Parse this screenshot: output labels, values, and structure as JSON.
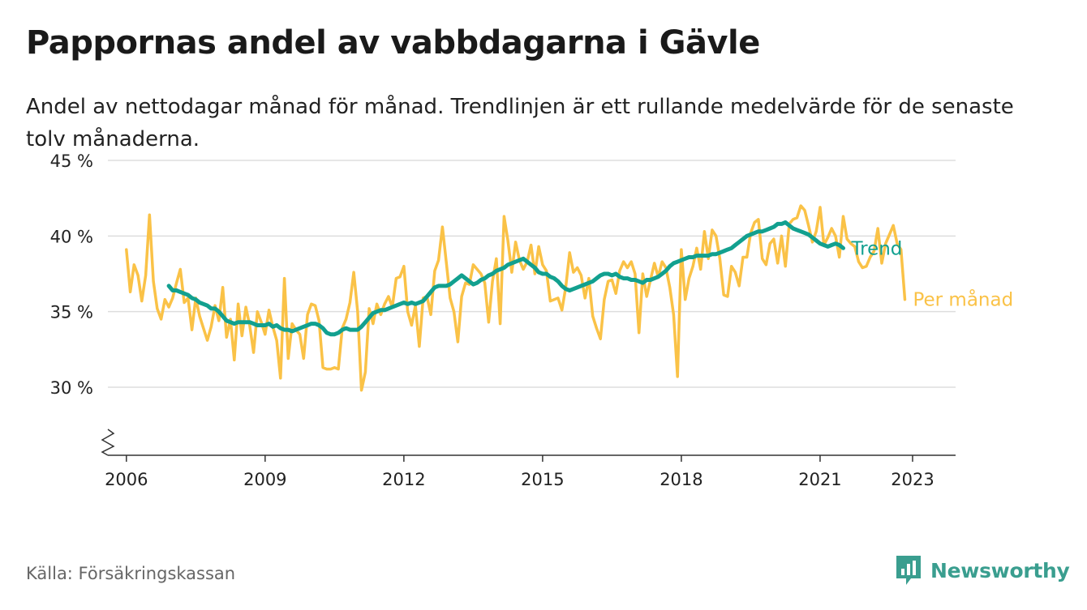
{
  "title": "Pappornas andel av vabbdagarna i Gävle",
  "subtitle": "Andel av nettodagar månad för månad. Trendlinjen är ett rullande medelvärde för de senaste tolv månaderna.",
  "source": "Källa: Försäkringskassan",
  "brand": "Newsworthy",
  "colors": {
    "monthly": "#fac247",
    "trend": "#12a08f",
    "grid": "#dddddd",
    "axis": "#333333",
    "brand": "#3a9e8f"
  },
  "chart_data": {
    "type": "line",
    "ylim": [
      25.5,
      45
    ],
    "xlim": [
      2005.6,
      2023.93
    ],
    "grid": true,
    "legend": "inline-right",
    "y_ticks": [
      30,
      35,
      40,
      45
    ],
    "y_tick_labels": [
      "30 %",
      "35 %",
      "40 %",
      "45 %"
    ],
    "x_ticks": [
      2006,
      2009,
      2012,
      2015,
      2018,
      2021,
      2023
    ],
    "x_tick_labels": [
      "2006",
      "2009",
      "2012",
      "2015",
      "2018",
      "2021",
      "2023"
    ],
    "series": [
      {
        "name": "Per månad",
        "color": "#fac247",
        "start": "2006-01",
        "values": [
          39.1,
          36.3,
          38.1,
          37.4,
          35.7,
          37.4,
          41.4,
          37.0,
          35.2,
          34.5,
          35.8,
          35.3,
          35.9,
          36.9,
          37.8,
          35.6,
          35.9,
          33.8,
          35.9,
          34.7,
          33.9,
          33.1,
          34.0,
          35.4,
          34.4,
          36.6,
          33.3,
          34.5,
          31.8,
          35.5,
          33.4,
          35.3,
          34.1,
          32.3,
          35.0,
          34.3,
          33.5,
          35.1,
          34.0,
          33.1,
          30.6,
          37.2,
          31.9,
          34.2,
          33.8,
          33.5,
          31.9,
          34.8,
          35.5,
          35.4,
          34.4,
          31.3,
          31.2,
          31.2,
          31.3,
          31.2,
          33.9,
          34.5,
          35.6,
          37.6,
          35.0,
          29.8,
          31.0,
          35.2,
          34.2,
          35.5,
          34.8,
          35.5,
          36.0,
          35.3,
          37.2,
          37.3,
          38.0,
          35.0,
          34.1,
          35.4,
          32.7,
          35.9,
          36.0,
          34.8,
          37.7,
          38.4,
          40.6,
          38.3,
          35.9,
          35.0,
          33.0,
          36.0,
          36.9,
          36.8,
          38.1,
          37.8,
          37.5,
          36.9,
          34.3,
          37.0,
          38.5,
          34.2,
          41.3,
          39.7,
          37.6,
          39.6,
          38.4,
          37.8,
          38.3,
          39.4,
          37.5,
          39.3,
          38.1,
          37.7,
          35.7,
          35.8,
          35.9,
          35.1,
          36.6,
          38.9,
          37.6,
          37.9,
          37.4,
          35.9,
          37.2,
          34.7,
          33.9,
          33.2,
          35.8,
          37.0,
          37.1,
          36.2,
          37.7,
          38.3,
          37.9,
          38.3,
          37.5,
          33.6,
          37.5,
          36.0,
          37.1,
          38.2,
          37.3,
          38.3,
          37.9,
          36.6,
          34.8,
          30.7,
          39.1,
          35.8,
          37.2,
          38.0,
          39.2,
          37.8,
          40.3,
          38.5,
          40.4,
          40.0,
          38.5,
          36.1,
          36.0,
          38.0,
          37.6,
          36.7,
          38.6,
          38.6,
          40.2,
          40.9,
          41.1,
          38.5,
          38.1,
          39.5,
          39.8,
          38.2,
          40.0,
          38.0,
          40.8,
          41.1,
          41.2,
          42.0,
          41.7,
          40.7,
          39.6,
          40.3,
          41.9,
          39.4,
          39.9,
          40.5,
          40.0,
          38.6,
          41.3,
          39.8,
          39.5,
          39.3,
          38.3,
          37.9,
          38.0,
          38.6,
          39.0,
          40.5,
          38.2,
          39.5,
          40.1,
          40.7,
          39.5,
          39.1,
          35.8
        ]
      },
      {
        "name": "Trend",
        "color": "#12a08f",
        "start": "2006-12",
        "values": [
          36.7,
          36.4,
          36.4,
          36.3,
          36.2,
          36.1,
          35.9,
          35.8,
          35.6,
          35.5,
          35.4,
          35.2,
          35.2,
          35.0,
          34.7,
          34.4,
          34.3,
          34.2,
          34.3,
          34.3,
          34.3,
          34.3,
          34.2,
          34.1,
          34.1,
          34.1,
          34.2,
          34.0,
          34.1,
          33.9,
          33.8,
          33.8,
          33.7,
          33.8,
          33.9,
          34.0,
          34.1,
          34.2,
          34.2,
          34.1,
          33.9,
          33.6,
          33.5,
          33.5,
          33.6,
          33.8,
          33.9,
          33.8,
          33.8,
          33.8,
          34.0,
          34.3,
          34.6,
          34.9,
          35.0,
          35.1,
          35.1,
          35.2,
          35.3,
          35.4,
          35.5,
          35.6,
          35.5,
          35.6,
          35.5,
          35.6,
          35.7,
          36.0,
          36.3,
          36.6,
          36.7,
          36.7,
          36.7,
          36.8,
          37.0,
          37.2,
          37.4,
          37.2,
          37.0,
          36.8,
          36.9,
          37.1,
          37.2,
          37.4,
          37.5,
          37.7,
          37.8,
          37.9,
          38.1,
          38.2,
          38.3,
          38.4,
          38.5,
          38.3,
          38.1,
          37.9,
          37.6,
          37.5,
          37.5,
          37.3,
          37.2,
          37.0,
          36.7,
          36.5,
          36.4,
          36.5,
          36.6,
          36.7,
          36.8,
          36.9,
          37.0,
          37.2,
          37.4,
          37.5,
          37.5,
          37.4,
          37.5,
          37.3,
          37.2,
          37.2,
          37.1,
          37.1,
          37.0,
          36.9,
          37.1,
          37.1,
          37.2,
          37.3,
          37.5,
          37.7,
          38.0,
          38.2,
          38.3,
          38.4,
          38.5,
          38.6,
          38.6,
          38.7,
          38.7,
          38.7,
          38.7,
          38.8,
          38.8,
          38.9,
          39.0,
          39.1,
          39.2,
          39.4,
          39.6,
          39.8,
          40.0,
          40.1,
          40.2,
          40.3,
          40.3,
          40.4,
          40.5,
          40.6,
          40.8,
          40.8,
          40.9,
          40.7,
          40.5,
          40.4,
          40.3,
          40.2,
          40.1,
          39.9,
          39.7,
          39.5,
          39.4,
          39.3,
          39.4,
          39.5,
          39.4,
          39.2
        ]
      }
    ]
  }
}
